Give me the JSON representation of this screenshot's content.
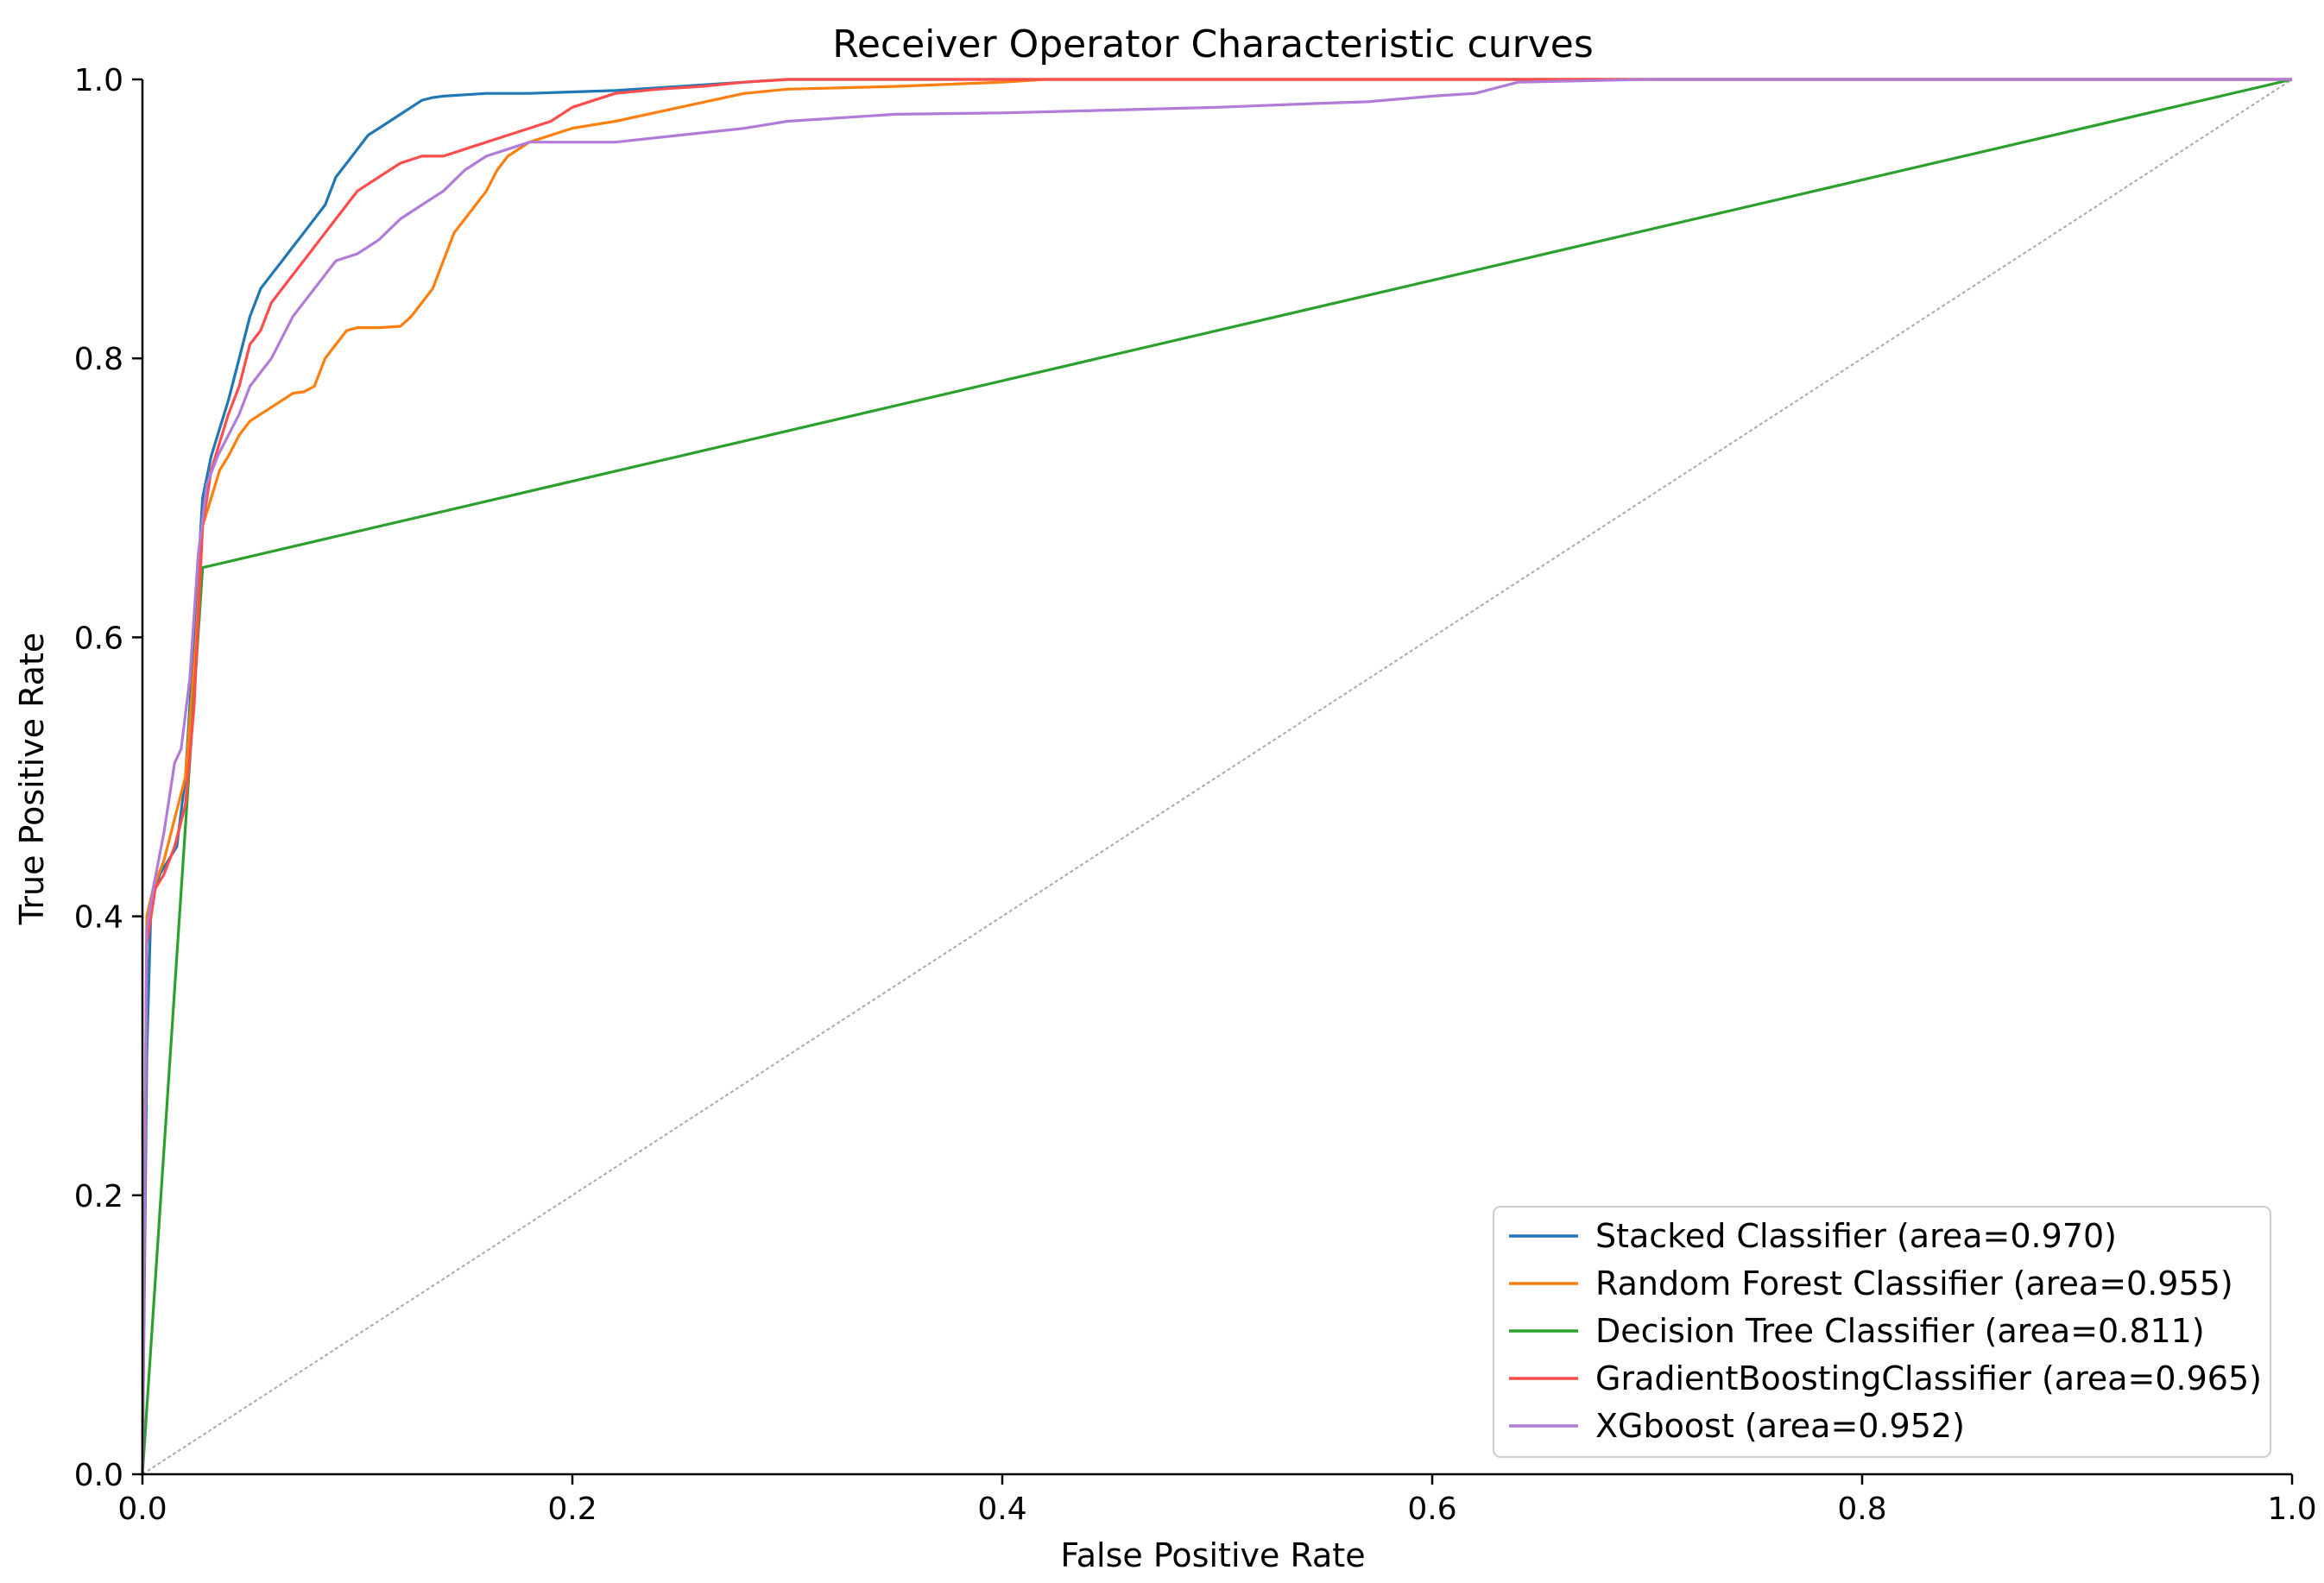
{
  "chart_data": {
    "type": "line",
    "title": "Receiver Operator Characteristic curves",
    "xlabel": "False Positive Rate",
    "ylabel": "True Positive Rate",
    "xlim": [
      0.0,
      1.0
    ],
    "ylim": [
      0.0,
      1.0
    ],
    "xticks": [
      "0.0",
      "0.2",
      "0.4",
      "0.6",
      "0.8",
      "1.0"
    ],
    "yticks": [
      "0.0",
      "0.2",
      "0.4",
      "0.6",
      "0.8",
      "1.0"
    ],
    "grid": false,
    "legend_position": "bottom-right",
    "reference_line": {
      "x": [
        0,
        1
      ],
      "y": [
        0,
        1
      ],
      "color": "#aaaaaa"
    },
    "series": [
      {
        "name": "Stacked Classifier  (area=0.970)",
        "color": "#1f77b4",
        "x": [
          0.0,
          0.002,
          0.004,
          0.006,
          0.008,
          0.012,
          0.016,
          0.02,
          0.024,
          0.028,
          0.032,
          0.036,
          0.04,
          0.045,
          0.05,
          0.055,
          0.06,
          0.065,
          0.07,
          0.075,
          0.08,
          0.085,
          0.09,
          0.095,
          0.1,
          0.105,
          0.11,
          0.115,
          0.12,
          0.125,
          0.13,
          0.135,
          0.14,
          0.15,
          0.16,
          0.17,
          0.18,
          0.2,
          0.22,
          0.25,
          0.28,
          0.3,
          0.4,
          0.5,
          0.6,
          0.8,
          1.0
        ],
        "y": [
          0.0,
          0.3,
          0.41,
          0.42,
          0.43,
          0.44,
          0.45,
          0.5,
          0.6,
          0.7,
          0.73,
          0.75,
          0.77,
          0.8,
          0.83,
          0.85,
          0.86,
          0.87,
          0.88,
          0.89,
          0.9,
          0.91,
          0.93,
          0.94,
          0.95,
          0.96,
          0.965,
          0.97,
          0.975,
          0.98,
          0.985,
          0.987,
          0.988,
          0.989,
          0.99,
          0.99,
          0.99,
          0.991,
          0.992,
          0.995,
          0.998,
          1.0,
          1.0,
          1.0,
          1.0,
          1.0,
          1.0
        ]
      },
      {
        "name": "Random Forest Classifier  (area=0.955)",
        "color": "#ff7f0e",
        "x": [
          0.0,
          0.002,
          0.005,
          0.01,
          0.015,
          0.02,
          0.025,
          0.028,
          0.032,
          0.036,
          0.04,
          0.045,
          0.05,
          0.055,
          0.06,
          0.065,
          0.07,
          0.075,
          0.08,
          0.085,
          0.09,
          0.095,
          0.1,
          0.11,
          0.12,
          0.125,
          0.13,
          0.135,
          0.14,
          0.145,
          0.15,
          0.155,
          0.16,
          0.165,
          0.17,
          0.175,
          0.18,
          0.19,
          0.2,
          0.22,
          0.25,
          0.28,
          0.3,
          0.35,
          0.4,
          0.42,
          0.5,
          0.6,
          0.8,
          1.0
        ],
        "y": [
          0.0,
          0.4,
          0.42,
          0.44,
          0.47,
          0.5,
          0.6,
          0.68,
          0.7,
          0.72,
          0.73,
          0.745,
          0.755,
          0.76,
          0.765,
          0.77,
          0.775,
          0.776,
          0.78,
          0.8,
          0.81,
          0.82,
          0.822,
          0.822,
          0.823,
          0.83,
          0.84,
          0.85,
          0.87,
          0.89,
          0.9,
          0.91,
          0.92,
          0.935,
          0.945,
          0.95,
          0.955,
          0.96,
          0.965,
          0.97,
          0.98,
          0.99,
          0.993,
          0.995,
          0.998,
          1.0,
          1.0,
          1.0,
          1.0,
          1.0
        ]
      },
      {
        "name": "Decision Tree Classifier  (area=0.811)",
        "color": "#2ca02c",
        "x": [
          0.0,
          0.028,
          1.0
        ],
        "y": [
          0.0,
          0.65,
          1.0
        ]
      },
      {
        "name": "GradientBoostingClassifier  (area=0.965)",
        "color": "#ff4c4c",
        "x": [
          0.0,
          0.002,
          0.004,
          0.006,
          0.01,
          0.015,
          0.02,
          0.024,
          0.028,
          0.032,
          0.036,
          0.04,
          0.045,
          0.05,
          0.055,
          0.06,
          0.065,
          0.07,
          0.075,
          0.08,
          0.085,
          0.09,
          0.095,
          0.1,
          0.11,
          0.12,
          0.13,
          0.14,
          0.15,
          0.16,
          0.17,
          0.18,
          0.19,
          0.2,
          0.21,
          0.22,
          0.24,
          0.26,
          0.28,
          0.3,
          0.4,
          0.5,
          0.6,
          0.8,
          1.0
        ],
        "y": [
          0.0,
          0.38,
          0.4,
          0.42,
          0.43,
          0.45,
          0.48,
          0.55,
          0.68,
          0.72,
          0.74,
          0.76,
          0.78,
          0.81,
          0.82,
          0.84,
          0.85,
          0.86,
          0.87,
          0.88,
          0.89,
          0.9,
          0.91,
          0.92,
          0.93,
          0.94,
          0.945,
          0.945,
          0.95,
          0.955,
          0.96,
          0.965,
          0.97,
          0.98,
          0.985,
          0.99,
          0.993,
          0.995,
          0.998,
          1.0,
          1.0,
          1.0,
          1.0,
          1.0,
          1.0
        ]
      },
      {
        "name": "XGboost (area=0.952)",
        "color": "#b07cd8",
        "x": [
          0.0,
          0.002,
          0.005,
          0.01,
          0.015,
          0.018,
          0.022,
          0.026,
          0.03,
          0.035,
          0.04,
          0.045,
          0.05,
          0.055,
          0.06,
          0.07,
          0.08,
          0.09,
          0.1,
          0.11,
          0.12,
          0.13,
          0.14,
          0.15,
          0.16,
          0.17,
          0.18,
          0.2,
          0.22,
          0.25,
          0.28,
          0.3,
          0.35,
          0.4,
          0.45,
          0.5,
          0.55,
          0.57,
          0.6,
          0.62,
          0.64,
          0.7,
          0.8,
          1.0
        ],
        "y": [
          0.0,
          0.39,
          0.42,
          0.46,
          0.51,
          0.52,
          0.57,
          0.66,
          0.71,
          0.73,
          0.745,
          0.76,
          0.78,
          0.79,
          0.8,
          0.83,
          0.85,
          0.87,
          0.875,
          0.885,
          0.9,
          0.91,
          0.92,
          0.935,
          0.945,
          0.95,
          0.955,
          0.955,
          0.955,
          0.96,
          0.965,
          0.97,
          0.975,
          0.976,
          0.978,
          0.98,
          0.983,
          0.984,
          0.988,
          0.99,
          0.998,
          1.0,
          1.0,
          1.0
        ]
      }
    ]
  }
}
